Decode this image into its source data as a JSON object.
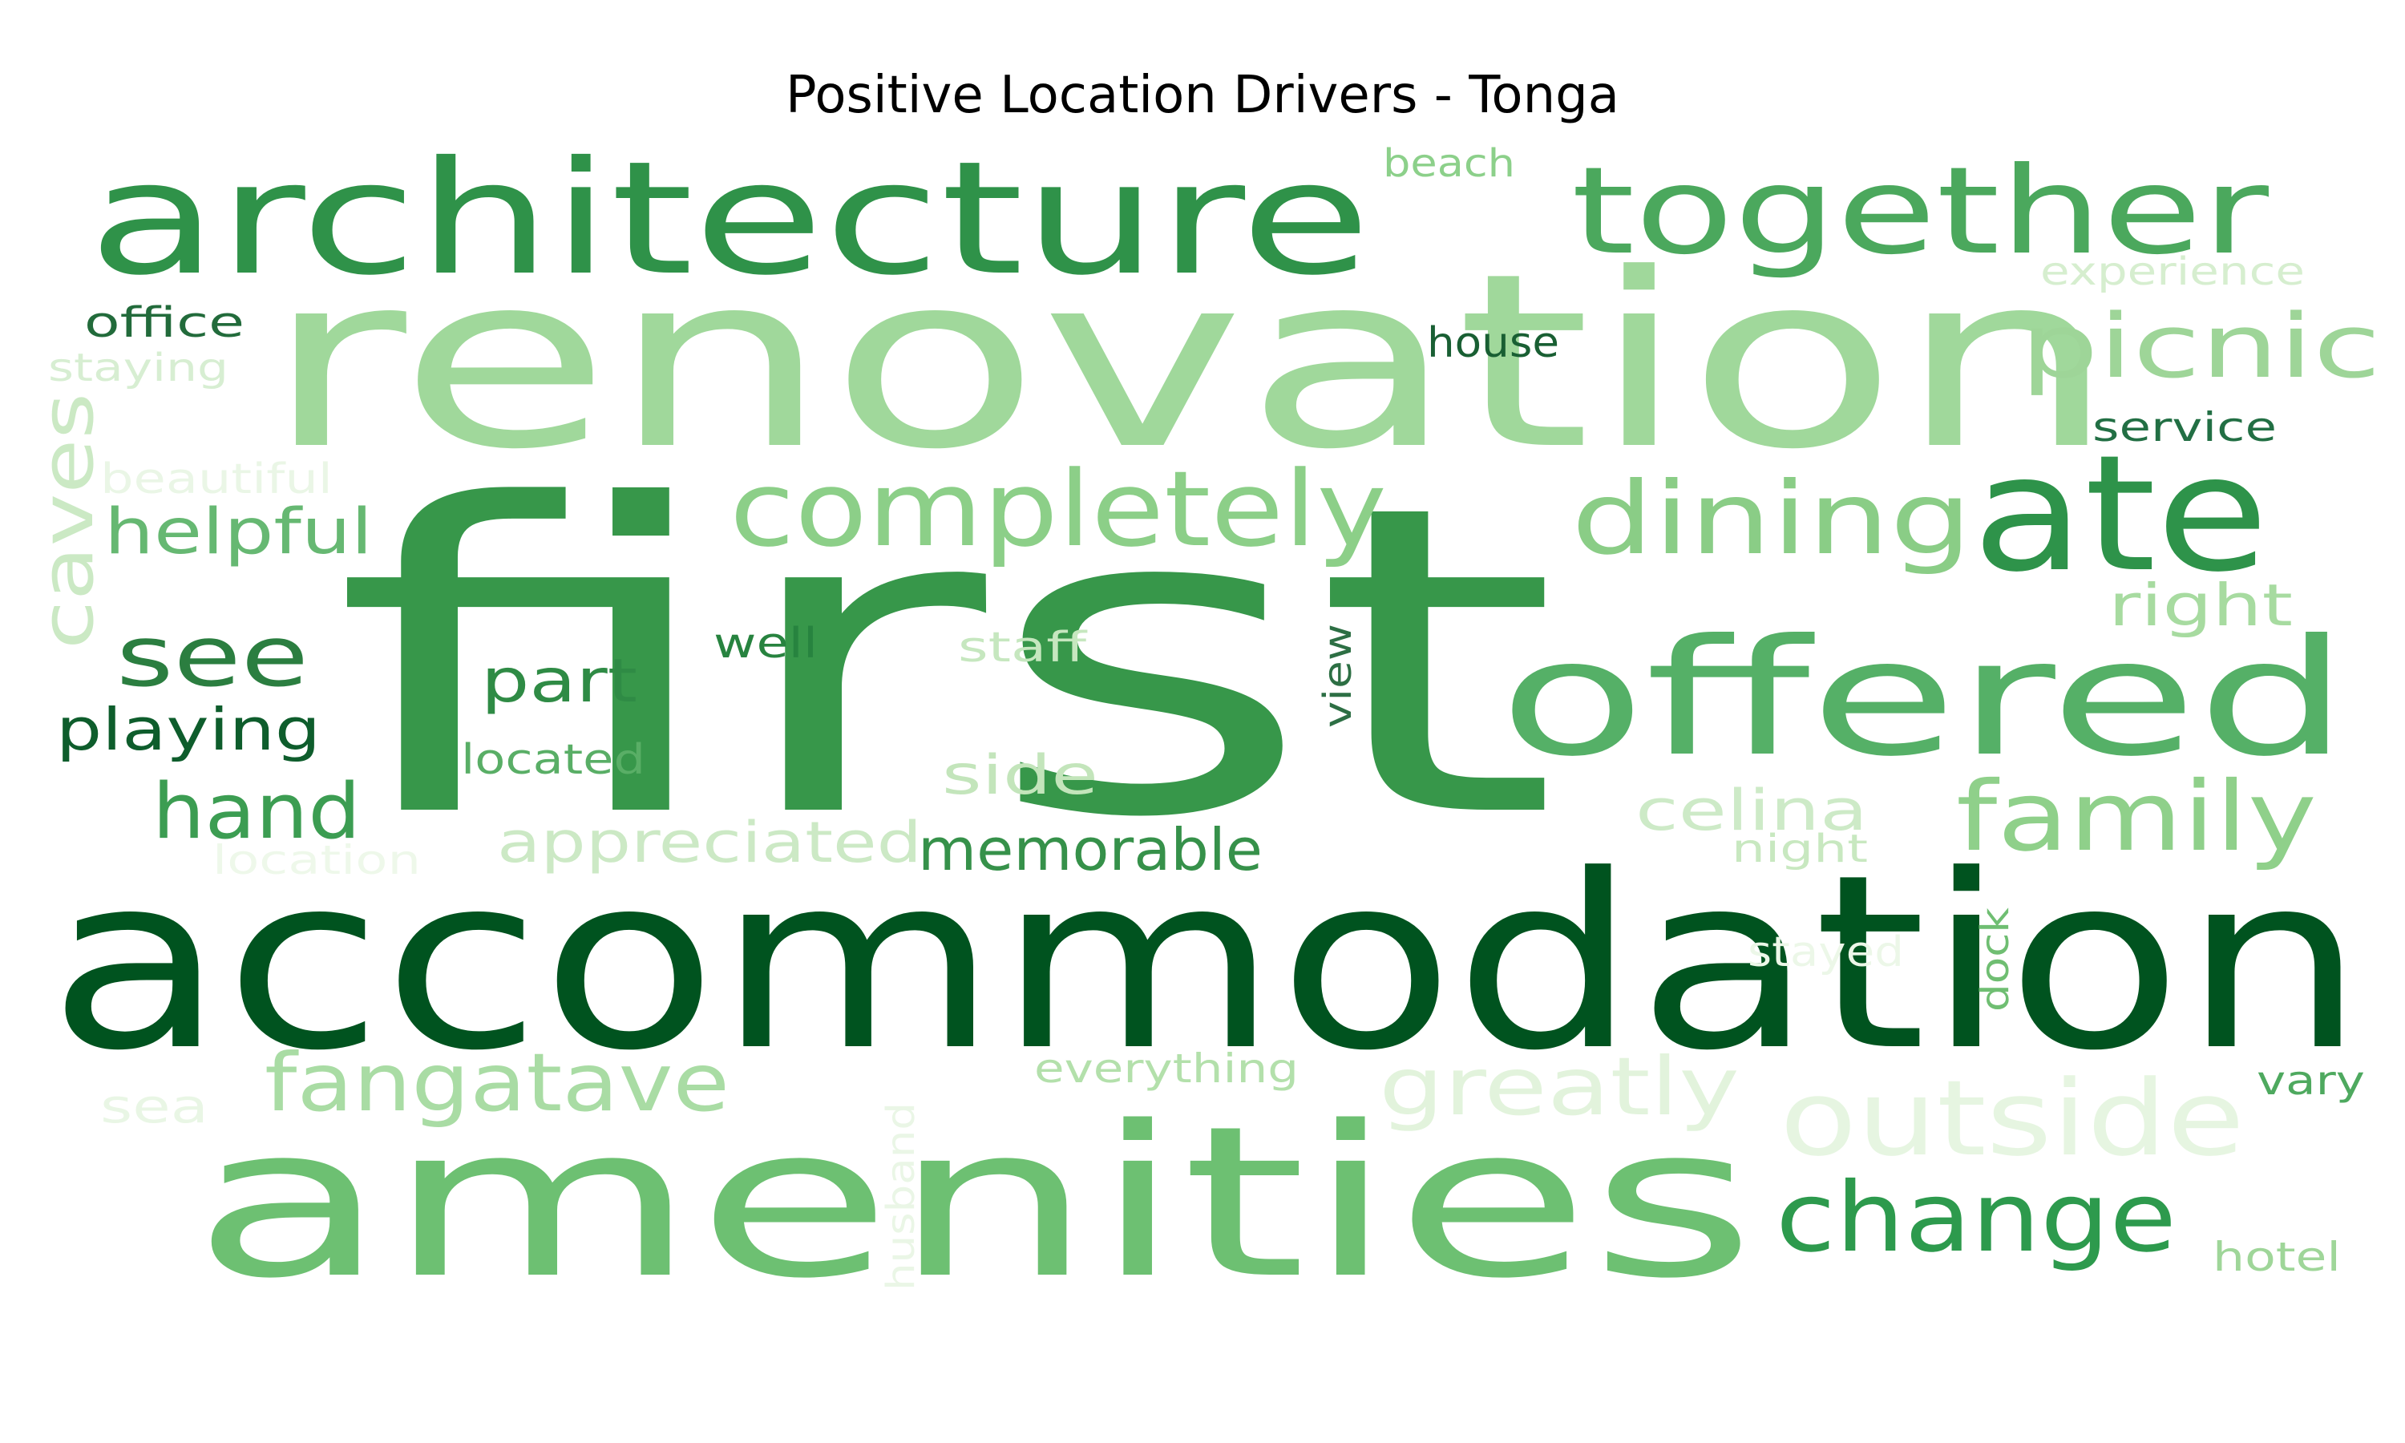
{
  "chart_data": {
    "type": "wordcloud",
    "title": "Positive Location Drivers - Tonga",
    "colormap": "Greens",
    "words": [
      {
        "text": "first",
        "color": "#37974a"
      },
      {
        "text": "accommodation",
        "color": "#00531f"
      },
      {
        "text": "renovation",
        "color": "#a0d89b"
      },
      {
        "text": "amenities",
        "color": "#6dc072"
      },
      {
        "text": "architecture",
        "color": "#2f9249"
      },
      {
        "text": "offered",
        "color": "#55b067"
      },
      {
        "text": "together",
        "color": "#4ba85d"
      },
      {
        "text": "ate",
        "color": "#2e934a"
      },
      {
        "text": "completely",
        "color": "#8ccf88"
      },
      {
        "text": "dining",
        "color": "#8acd86"
      },
      {
        "text": "picnic",
        "color": "#9ed598"
      },
      {
        "text": "family",
        "color": "#8fd08a"
      },
      {
        "text": "change",
        "color": "#2d9a4d"
      },
      {
        "text": "outside",
        "color": "#e6f5e1"
      },
      {
        "text": "fangatave",
        "color": "#a9dca4"
      },
      {
        "text": "greatly",
        "color": "#e2f3dc"
      },
      {
        "text": "see",
        "color": "#2b7e40"
      },
      {
        "text": "hand",
        "color": "#3c9d52"
      },
      {
        "text": "playing",
        "color": "#0e5d2c"
      },
      {
        "text": "part",
        "color": "#2f8b45"
      },
      {
        "text": "helpful",
        "color": "#66b872"
      },
      {
        "text": "caves",
        "color": "#cbe9c4"
      },
      {
        "text": "memorable",
        "color": "#36914a"
      },
      {
        "text": "appreciated",
        "color": "#cce9c5"
      },
      {
        "text": "side",
        "color": "#c3e5bb"
      },
      {
        "text": "celina",
        "color": "#cdeac7"
      },
      {
        "text": "right",
        "color": "#a7dba0"
      },
      {
        "text": "located",
        "color": "#59ae66"
      },
      {
        "text": "well",
        "color": "#27833f"
      },
      {
        "text": "staff",
        "color": "#c6e7bf"
      },
      {
        "text": "view",
        "color": "#2d6f44"
      },
      {
        "text": "house",
        "color": "#195f33"
      },
      {
        "text": "office",
        "color": "#226b3b"
      },
      {
        "text": "staying",
        "color": "#d7eed2"
      },
      {
        "text": "beautiful",
        "color": "#eaf6e6"
      },
      {
        "text": "beach",
        "color": "#8cd08a"
      },
      {
        "text": "experience",
        "color": "#d6eecf"
      },
      {
        "text": "service",
        "color": "#226f44"
      },
      {
        "text": "night",
        "color": "#c8e8c0"
      },
      {
        "text": "stayed",
        "color": "#ecf7e8"
      },
      {
        "text": "dock",
        "color": "#6fbe72"
      },
      {
        "text": "location",
        "color": "#eef8ea"
      },
      {
        "text": "everything",
        "color": "#b3e0ab"
      },
      {
        "text": "sea",
        "color": "#e9f6e5"
      },
      {
        "text": "husband",
        "color": "#eaf6e6"
      },
      {
        "text": "vary",
        "color": "#4ea95f"
      },
      {
        "text": "hotel",
        "color": "#9fd699"
      }
    ]
  }
}
